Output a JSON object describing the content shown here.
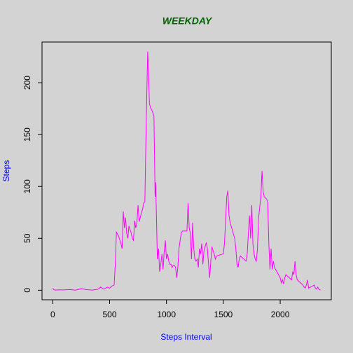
{
  "chart_data": {
    "type": "line",
    "title": "WEEKDAY",
    "xlabel": "Steps Interval",
    "ylabel": "Steps",
    "x": [
      0,
      10,
      25,
      50,
      100,
      150,
      200,
      250,
      300,
      350,
      400,
      420,
      450,
      480,
      500,
      520,
      540,
      550,
      560,
      580,
      600,
      610,
      620,
      630,
      640,
      650,
      660,
      670,
      690,
      700,
      710,
      720,
      730,
      740,
      750,
      760,
      770,
      780,
      790,
      800,
      810,
      820,
      830,
      835,
      840,
      850,
      860,
      870,
      880,
      890,
      900,
      905,
      910,
      920,
      930,
      940,
      950,
      960,
      970,
      980,
      990,
      1000,
      1010,
      1020,
      1030,
      1040,
      1050,
      1060,
      1070,
      1080,
      1090,
      1100,
      1110,
      1120,
      1130,
      1140,
      1160,
      1180,
      1190,
      1200,
      1210,
      1220,
      1230,
      1240,
      1250,
      1260,
      1270,
      1280,
      1290,
      1300,
      1310,
      1320,
      1330,
      1340,
      1350,
      1360,
      1370,
      1380,
      1390,
      1400,
      1410,
      1420,
      1430,
      1440,
      1500,
      1510,
      1530,
      1540,
      1550,
      1560,
      1600,
      1610,
      1620,
      1630,
      1640,
      1650,
      1700,
      1710,
      1720,
      1730,
      1740,
      1750,
      1760,
      1770,
      1780,
      1790,
      1800,
      1810,
      1820,
      1830,
      1840,
      1850,
      1860,
      1880,
      1890,
      1900,
      1910,
      1920,
      1930,
      1940,
      1950,
      2000,
      2010,
      2020,
      2030,
      2040,
      2050,
      2100,
      2110,
      2120,
      2130,
      2140,
      2150,
      2200,
      2210,
      2220,
      2230,
      2240,
      2250,
      2300,
      2310,
      2320,
      2330,
      2340,
      2355
    ],
    "series": [
      {
        "name": "Steps",
        "color": "#ff00ff",
        "values": [
          2,
          0.5,
          0.2,
          0.4,
          0.3,
          0.7,
          0.1,
          1.5,
          0.5,
          0.2,
          1,
          3,
          1,
          3,
          2,
          4,
          5,
          25,
          56,
          52,
          45,
          40,
          76,
          60,
          70,
          55,
          50,
          62,
          55,
          50,
          48,
          67,
          60,
          65,
          82,
          66,
          70,
          75,
          78,
          84,
          85,
          150,
          205,
          230,
          220,
          180,
          176,
          174,
          171,
          168,
          90,
          104,
          80,
          30,
          40,
          18,
          25,
          35,
          20,
          37,
          48,
          30,
          35,
          28,
          25,
          25,
          22,
          24,
          24,
          22,
          12,
          22,
          40,
          48,
          55,
          57,
          57,
          57,
          84,
          60,
          55,
          30,
          65,
          40,
          30,
          28,
          30,
          22,
          40,
          35,
          45,
          25,
          38,
          42,
          46,
          40,
          25,
          12,
          28,
          42,
          38,
          35,
          30,
          33,
          35,
          45,
          90,
          96,
          72,
          65,
          50,
          40,
          25,
          22,
          30,
          33,
          28,
          35,
          55,
          72,
          50,
          82,
          45,
          35,
          30,
          28,
          40,
          70,
          80,
          90,
          115,
          95,
          90,
          88,
          85,
          45,
          20,
          40,
          20,
          28,
          22,
          12,
          7,
          10,
          6,
          12,
          15,
          10,
          18,
          15,
          28,
          15,
          10,
          5,
          3,
          2,
          5,
          10,
          2,
          5,
          2,
          1,
          3,
          1,
          0
        ]
      }
    ],
    "xlim": [
      -94.2,
      2449.2
    ],
    "ylim": [
      -9.2,
      239.2
    ],
    "xticks": [
      0,
      500,
      1000,
      1500,
      2000
    ],
    "yticks": [
      0,
      50,
      100,
      150,
      200
    ]
  }
}
